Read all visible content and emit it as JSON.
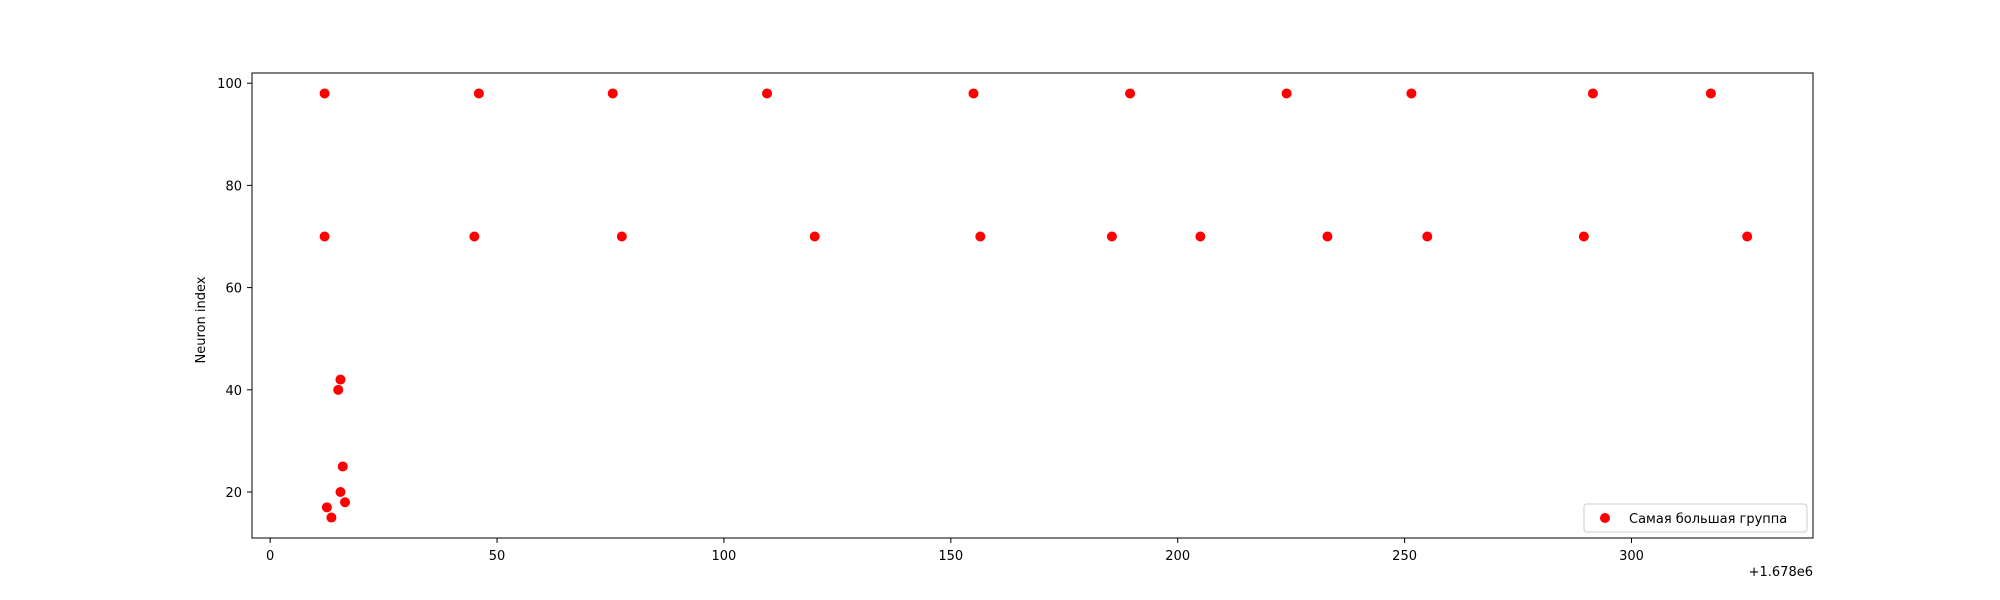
{
  "chart_data": {
    "type": "scatter",
    "title": "",
    "xlabel": "",
    "ylabel": "Neuron index",
    "x_offset_label": "+1.678e6",
    "xlim": [
      1677996,
      1678340
    ],
    "ylim": [
      11,
      102
    ],
    "x_ticks": [
      0,
      50,
      100,
      150,
      200,
      250,
      300
    ],
    "y_ticks": [
      20,
      40,
      60,
      80,
      100
    ],
    "grid": false,
    "legend_position": "lower-right",
    "series": [
      {
        "name": "Самая большая группа",
        "color": "#ff0000",
        "x": [
          1678012,
          1678046,
          1678075.5,
          1678109.5,
          1678155,
          1678189.5,
          1678224,
          1678251.5,
          1678291.5,
          1678317.5,
          1678012,
          1678045,
          1678077.5,
          1678120,
          1678156.5,
          1678185.5,
          1678205,
          1678233,
          1678255,
          1678289.5,
          1678325.5,
          1678015.5,
          1678015,
          1678016,
          1678015.5,
          1678012.5,
          1678013.5,
          1678016.5
        ],
        "y": [
          98,
          98,
          98,
          98,
          98,
          98,
          98,
          98,
          98,
          98,
          70,
          70,
          70,
          70,
          70,
          70,
          70,
          70,
          70,
          70,
          70,
          42,
          40,
          25,
          20,
          17,
          15,
          18
        ]
      }
    ]
  }
}
